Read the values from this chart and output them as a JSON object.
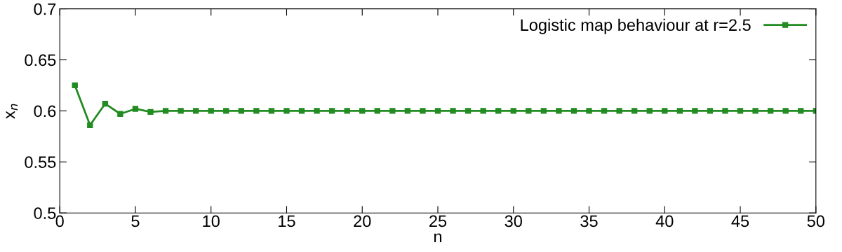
{
  "chart_data": {
    "type": "line",
    "xlabel": "n",
    "ylabel": "x$_{n}$",
    "x": [
      1,
      2,
      3,
      4,
      5,
      6,
      7,
      8,
      9,
      10,
      11,
      12,
      13,
      14,
      15,
      16,
      17,
      18,
      19,
      20,
      21,
      22,
      23,
      24,
      25,
      26,
      27,
      28,
      29,
      30,
      31,
      32,
      33,
      34,
      35,
      36,
      37,
      38,
      39,
      40,
      41,
      42,
      43,
      44,
      45,
      46,
      47,
      48,
      49,
      50
    ],
    "series": [
      {
        "name": "Logistic map behaviour at r=2.5",
        "color": "#228b22",
        "values": [
          0.625,
          0.586,
          0.607,
          0.597,
          0.602,
          0.599,
          0.6,
          0.6,
          0.6,
          0.6,
          0.6,
          0.6,
          0.6,
          0.6,
          0.6,
          0.6,
          0.6,
          0.6,
          0.6,
          0.6,
          0.6,
          0.6,
          0.6,
          0.6,
          0.6,
          0.6,
          0.6,
          0.6,
          0.6,
          0.6,
          0.6,
          0.6,
          0.6,
          0.6,
          0.6,
          0.6,
          0.6,
          0.6,
          0.6,
          0.6,
          0.6,
          0.6,
          0.6,
          0.6,
          0.6,
          0.6,
          0.6,
          0.6,
          0.6,
          0.6
        ]
      }
    ],
    "xlim": [
      0,
      50
    ],
    "xticks": [
      0,
      5,
      10,
      15,
      20,
      25,
      30,
      35,
      40,
      45,
      50
    ],
    "ylim": [
      0.5,
      0.7
    ],
    "yticks": [
      0.5,
      0.55,
      0.6,
      0.65,
      0.7
    ],
    "grid": false,
    "legend": "top right",
    "marker": "square",
    "line_style": "solid"
  }
}
